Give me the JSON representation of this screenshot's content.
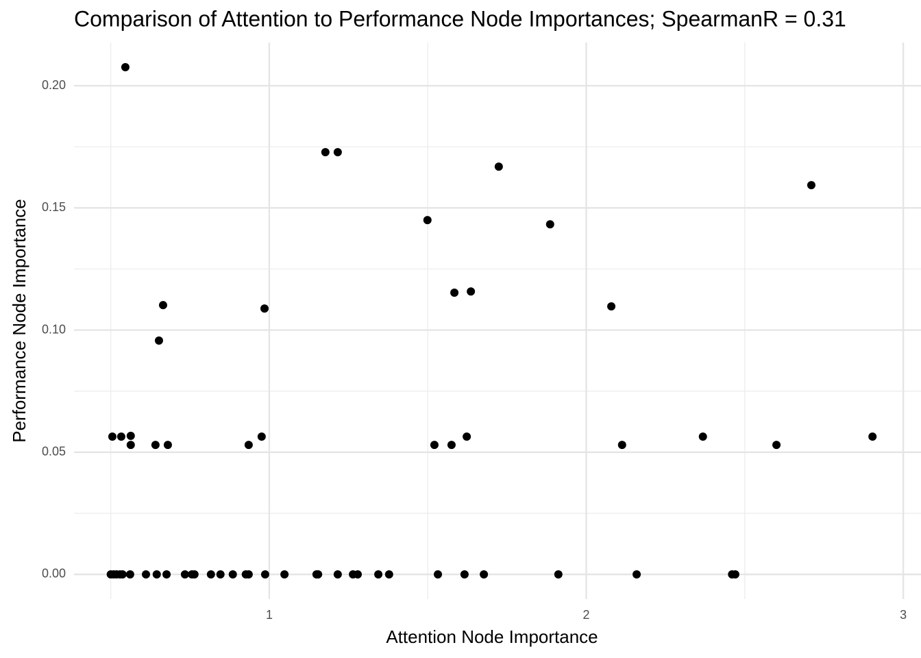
{
  "chart_data": {
    "type": "scatter",
    "title": "Comparison of Attention to Performance Node Importances; SpearmanR = 0.31",
    "x_label": "Attention Node Importance",
    "y_label": "Performance Node Importance",
    "color": "#000000",
    "grid": true,
    "xlim": [
      0.384,
      3.056
    ],
    "ylim": [
      -0.0101,
      0.2177
    ],
    "xticks": [
      1,
      2,
      3
    ],
    "xminor": [
      0.5,
      1.5,
      2.5
    ],
    "yticks": [
      {
        "value": 0,
        "label": "0.00"
      },
      {
        "value": 0.05,
        "label": "0.05"
      },
      {
        "value": 0.1,
        "label": "0.10"
      },
      {
        "value": 0.15,
        "label": "0.15"
      },
      {
        "value": 0.2,
        "label": "0.20"
      }
    ],
    "yminor": [
      0.025,
      0.075,
      0.125,
      0.175
    ],
    "x": [
      0.546,
      1.177,
      1.216,
      1.724,
      2.71,
      1.499,
      1.886,
      0.665,
      0.652,
      0.985,
      1.584,
      1.636,
      2.079,
      0.505,
      0.533,
      0.563,
      0.976,
      1.623,
      2.368,
      2.903,
      0.563,
      0.641,
      0.68,
      0.935,
      1.521,
      1.575,
      2.113,
      2.6,
      0.5,
      0.509,
      0.518,
      0.529,
      0.537,
      0.561,
      0.611,
      0.645,
      0.676,
      0.734,
      0.756,
      0.764,
      0.816,
      0.846,
      0.885,
      0.926,
      0.935,
      0.987,
      1.048,
      1.149,
      1.154,
      1.216,
      1.264,
      1.279,
      1.344,
      1.378,
      1.532,
      1.616,
      1.677,
      1.912,
      2.159,
      2.46,
      2.47
    ],
    "values": [
      0.2076,
      0.1728,
      0.1728,
      0.1669,
      0.1593,
      0.145,
      0.1433,
      0.1102,
      0.0957,
      0.1088,
      0.1153,
      0.1158,
      0.1097,
      0.0564,
      0.0564,
      0.0567,
      0.0564,
      0.0564,
      0.0564,
      0.0564,
      0.053,
      0.053,
      0.053,
      0.053,
      0.053,
      0.053,
      0.053,
      0.053,
      0,
      0,
      0,
      0,
      0,
      0,
      0,
      0,
      0,
      0,
      0,
      0,
      0,
      0,
      0,
      0,
      0,
      0,
      0,
      0,
      0,
      0,
      0,
      0,
      0,
      0,
      0,
      0,
      0,
      0,
      0,
      0,
      0
    ]
  }
}
